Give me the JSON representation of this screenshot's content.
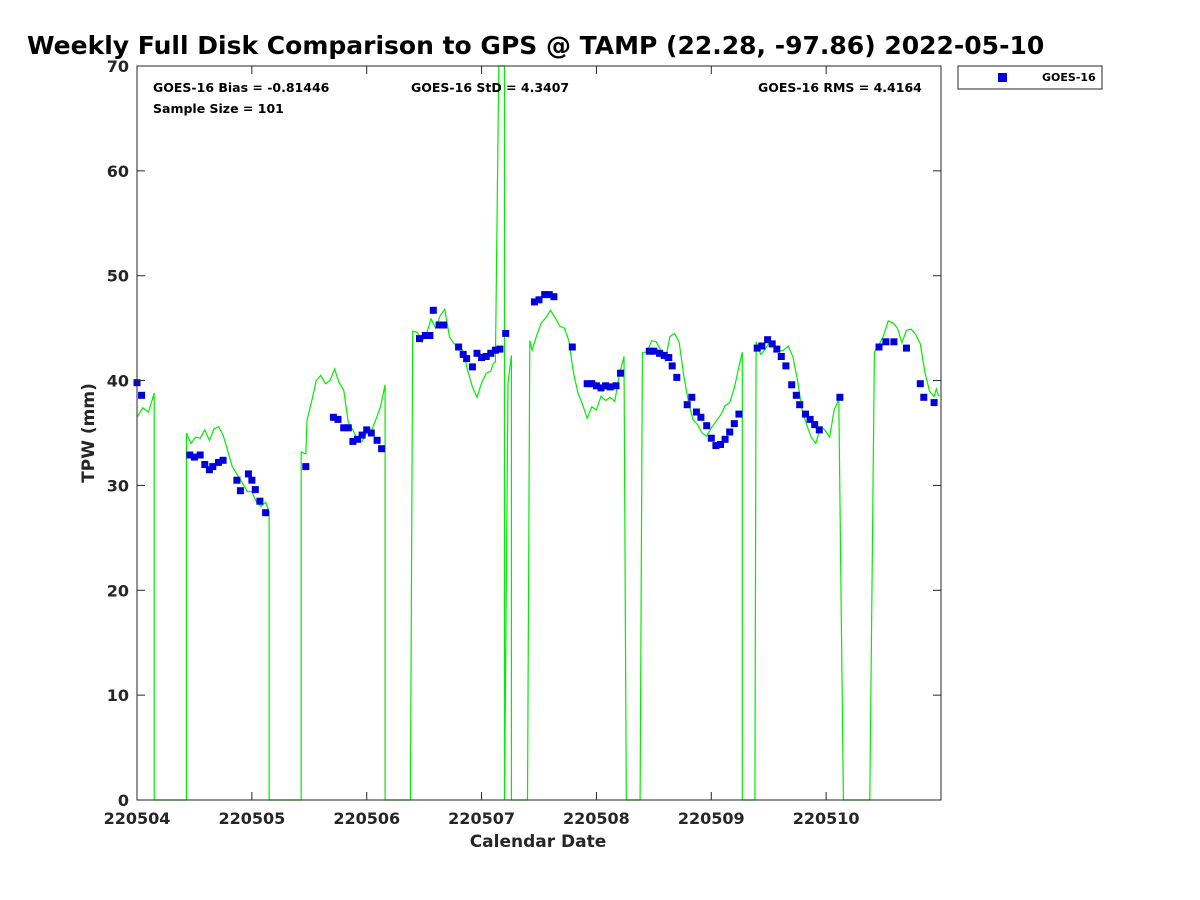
{
  "chart_data": {
    "type": "scatter",
    "title": "Weekly Full Disk Comparison to GPS @ TAMP (22.28, -97.86) 2022-05-10",
    "xlabel": "Calendar Date",
    "ylabel": "TPW (mm)",
    "xlim": [
      0,
      7
    ],
    "ylim": [
      0,
      70
    ],
    "x_ticks": [
      {
        "value": 0,
        "label": "220504"
      },
      {
        "value": 1,
        "label": "220505"
      },
      {
        "value": 2,
        "label": "220506"
      },
      {
        "value": 3,
        "label": "220507"
      },
      {
        "value": 4,
        "label": "220508"
      },
      {
        "value": 5,
        "label": "220509"
      },
      {
        "value": 6,
        "label": "220510"
      }
    ],
    "y_ticks": [
      0,
      10,
      20,
      30,
      40,
      50,
      60,
      70
    ],
    "grid": false,
    "legend_position": "top-right",
    "stats": {
      "bias": "GOES-16 Bias = -0.81446",
      "sample_size": "Sample Size = 101",
      "std": "GOES-16 StD = 4.3407",
      "rms": "GOES-16 RMS = 4.4164"
    },
    "series": [
      {
        "name": "GOES-16",
        "kind": "scatter",
        "color": "#0000dd",
        "points": [
          [
            0.0,
            39.8
          ],
          [
            0.04,
            38.6
          ],
          [
            0.46,
            32.9
          ],
          [
            0.5,
            32.7
          ],
          [
            0.55,
            32.9
          ],
          [
            0.59,
            32.0
          ],
          [
            0.63,
            31.5
          ],
          [
            0.66,
            31.8
          ],
          [
            0.71,
            32.2
          ],
          [
            0.75,
            32.4
          ],
          [
            0.87,
            30.5
          ],
          [
            0.9,
            29.5
          ],
          [
            0.97,
            31.1
          ],
          [
            1.0,
            30.5
          ],
          [
            1.03,
            29.6
          ],
          [
            1.07,
            28.5
          ],
          [
            1.12,
            27.4
          ],
          [
            1.47,
            31.8
          ],
          [
            1.71,
            36.5
          ],
          [
            1.75,
            36.3
          ],
          [
            1.8,
            35.5
          ],
          [
            1.84,
            35.5
          ],
          [
            1.88,
            34.2
          ],
          [
            1.92,
            34.4
          ],
          [
            1.96,
            34.8
          ],
          [
            2.0,
            35.3
          ],
          [
            2.04,
            35.0
          ],
          [
            2.09,
            34.3
          ],
          [
            2.13,
            33.5
          ],
          [
            2.46,
            44.0
          ],
          [
            2.51,
            44.3
          ],
          [
            2.55,
            44.3
          ],
          [
            2.58,
            46.7
          ],
          [
            2.63,
            45.3
          ],
          [
            2.67,
            45.3
          ],
          [
            2.8,
            43.2
          ],
          [
            2.84,
            42.5
          ],
          [
            2.87,
            42.1
          ],
          [
            2.92,
            41.3
          ],
          [
            2.96,
            42.6
          ],
          [
            3.0,
            42.2
          ],
          [
            3.04,
            42.3
          ],
          [
            3.08,
            42.6
          ],
          [
            3.12,
            42.9
          ],
          [
            3.16,
            43.0
          ],
          [
            3.21,
            44.5
          ],
          [
            3.46,
            47.5
          ],
          [
            3.5,
            47.7
          ],
          [
            3.55,
            48.2
          ],
          [
            3.59,
            48.2
          ],
          [
            3.63,
            48.0
          ],
          [
            3.79,
            43.2
          ],
          [
            3.92,
            39.7
          ],
          [
            3.96,
            39.7
          ],
          [
            4.0,
            39.5
          ],
          [
            4.04,
            39.3
          ],
          [
            4.08,
            39.5
          ],
          [
            4.12,
            39.4
          ],
          [
            4.17,
            39.5
          ],
          [
            4.21,
            40.7
          ],
          [
            4.46,
            42.8
          ],
          [
            4.5,
            42.8
          ],
          [
            4.55,
            42.6
          ],
          [
            4.59,
            42.4
          ],
          [
            4.63,
            42.2
          ],
          [
            4.66,
            41.4
          ],
          [
            4.7,
            40.3
          ],
          [
            4.79,
            37.7
          ],
          [
            4.83,
            38.4
          ],
          [
            4.87,
            37.0
          ],
          [
            4.91,
            36.5
          ],
          [
            4.96,
            35.7
          ],
          [
            5.0,
            34.5
          ],
          [
            5.04,
            33.8
          ],
          [
            5.08,
            33.9
          ],
          [
            5.12,
            34.4
          ],
          [
            5.16,
            35.1
          ],
          [
            5.2,
            35.9
          ],
          [
            5.24,
            36.8
          ],
          [
            5.4,
            43.1
          ],
          [
            5.44,
            43.3
          ],
          [
            5.49,
            43.9
          ],
          [
            5.53,
            43.5
          ],
          [
            5.57,
            43.0
          ],
          [
            5.61,
            42.3
          ],
          [
            5.65,
            41.4
          ],
          [
            5.7,
            39.6
          ],
          [
            5.74,
            38.6
          ],
          [
            5.77,
            37.7
          ],
          [
            5.82,
            36.8
          ],
          [
            5.86,
            36.3
          ],
          [
            5.9,
            35.8
          ],
          [
            5.94,
            35.3
          ],
          [
            6.12,
            38.4
          ],
          [
            6.46,
            43.2
          ],
          [
            6.52,
            43.7
          ],
          [
            6.59,
            43.7
          ],
          [
            6.7,
            43.1
          ],
          [
            6.82,
            39.7
          ],
          [
            6.85,
            38.4
          ],
          [
            6.94,
            37.9
          ]
        ]
      },
      {
        "name": "",
        "kind": "line",
        "color": "#00ee00",
        "points": [
          [
            0.0,
            36.5
          ],
          [
            0.05,
            37.4
          ],
          [
            0.1,
            37.0
          ],
          [
            0.15,
            38.8
          ],
          [
            0.15,
            0.0
          ],
          [
            0.43,
            0.0
          ],
          [
            0.43,
            35.0
          ],
          [
            0.47,
            34.0
          ],
          [
            0.51,
            34.6
          ],
          [
            0.55,
            34.5
          ],
          [
            0.59,
            35.3
          ],
          [
            0.63,
            34.3
          ],
          [
            0.67,
            35.4
          ],
          [
            0.71,
            35.6
          ],
          [
            0.75,
            34.8
          ],
          [
            0.79,
            33.3
          ],
          [
            0.83,
            31.8
          ],
          [
            0.88,
            30.9
          ],
          [
            0.92,
            30.2
          ],
          [
            0.96,
            29.4
          ],
          [
            1.0,
            29.4
          ],
          [
            1.04,
            28.4
          ],
          [
            1.08,
            28.0
          ],
          [
            1.12,
            28.4
          ],
          [
            1.15,
            27.5
          ],
          [
            1.15,
            0.0
          ],
          [
            1.43,
            0.0
          ],
          [
            1.43,
            33.2
          ],
          [
            1.47,
            33.0
          ],
          [
            1.48,
            36.2
          ],
          [
            1.52,
            38.0
          ],
          [
            1.56,
            40.0
          ],
          [
            1.6,
            40.5
          ],
          [
            1.64,
            39.7
          ],
          [
            1.68,
            40.0
          ],
          [
            1.72,
            41.1
          ],
          [
            1.76,
            39.8
          ],
          [
            1.8,
            39.1
          ],
          [
            1.84,
            36.0
          ],
          [
            1.88,
            35.3
          ],
          [
            1.92,
            34.3
          ],
          [
            1.96,
            34.2
          ],
          [
            2.0,
            35.0
          ],
          [
            2.04,
            35.2
          ],
          [
            2.08,
            36.3
          ],
          [
            2.12,
            37.5
          ],
          [
            2.16,
            39.6
          ],
          [
            2.16,
            0.0
          ],
          [
            2.38,
            0.0
          ],
          [
            2.4,
            44.7
          ],
          [
            2.44,
            44.6
          ],
          [
            2.48,
            43.7
          ],
          [
            2.52,
            44.4
          ],
          [
            2.56,
            45.9
          ],
          [
            2.6,
            45.0
          ],
          [
            2.64,
            46.2
          ],
          [
            2.68,
            46.8
          ],
          [
            2.72,
            44.2
          ],
          [
            2.76,
            43.5
          ],
          [
            2.8,
            43.4
          ],
          [
            2.84,
            42.8
          ],
          [
            2.88,
            40.9
          ],
          [
            2.92,
            39.4
          ],
          [
            2.96,
            38.4
          ],
          [
            3.0,
            39.8
          ],
          [
            3.04,
            40.7
          ],
          [
            3.08,
            40.9
          ],
          [
            3.1,
            41.6
          ],
          [
            3.12,
            41.8
          ],
          [
            3.15,
            70.0
          ],
          [
            3.2,
            70.0
          ],
          [
            3.2,
            0.0
          ],
          [
            3.23,
            39.8
          ],
          [
            3.26,
            42.4
          ],
          [
            3.26,
            0.0
          ],
          [
            3.4,
            0.0
          ],
          [
            3.42,
            43.8
          ],
          [
            3.44,
            42.9
          ],
          [
            3.48,
            44.3
          ],
          [
            3.52,
            45.5
          ],
          [
            3.56,
            46.0
          ],
          [
            3.6,
            46.7
          ],
          [
            3.64,
            46.0
          ],
          [
            3.68,
            45.2
          ],
          [
            3.72,
            45.0
          ],
          [
            3.76,
            43.8
          ],
          [
            3.8,
            40.7
          ],
          [
            3.84,
            38.8
          ],
          [
            3.88,
            37.7
          ],
          [
            3.92,
            36.4
          ],
          [
            3.96,
            37.5
          ],
          [
            4.0,
            37.2
          ],
          [
            4.04,
            38.5
          ],
          [
            4.08,
            38.1
          ],
          [
            4.12,
            38.4
          ],
          [
            4.16,
            38.0
          ],
          [
            4.2,
            40.6
          ],
          [
            4.24,
            42.3
          ],
          [
            4.26,
            0.0
          ],
          [
            4.38,
            0.0
          ],
          [
            4.4,
            42.7
          ],
          [
            4.44,
            42.7
          ],
          [
            4.48,
            43.8
          ],
          [
            4.52,
            43.7
          ],
          [
            4.56,
            42.9
          ],
          [
            4.6,
            41.9
          ],
          [
            4.64,
            44.2
          ],
          [
            4.68,
            44.5
          ],
          [
            4.72,
            43.7
          ],
          [
            4.76,
            40.5
          ],
          [
            4.8,
            38.0
          ],
          [
            4.84,
            36.3
          ],
          [
            4.88,
            35.8
          ],
          [
            4.92,
            35.0
          ],
          [
            4.96,
            34.7
          ],
          [
            5.0,
            35.5
          ],
          [
            5.04,
            36.1
          ],
          [
            5.08,
            36.7
          ],
          [
            5.12,
            37.6
          ],
          [
            5.16,
            37.9
          ],
          [
            5.2,
            39.3
          ],
          [
            5.24,
            41.3
          ],
          [
            5.27,
            42.7
          ],
          [
            5.27,
            0.0
          ],
          [
            5.38,
            0.0
          ],
          [
            5.39,
            43.7
          ],
          [
            5.43,
            42.5
          ],
          [
            5.47,
            43.0
          ],
          [
            5.51,
            43.7
          ],
          [
            5.55,
            43.4
          ],
          [
            5.59,
            42.8
          ],
          [
            5.63,
            42.9
          ],
          [
            5.67,
            43.3
          ],
          [
            5.71,
            42.3
          ],
          [
            5.75,
            40.1
          ],
          [
            5.79,
            37.2
          ],
          [
            5.83,
            35.8
          ],
          [
            5.87,
            34.6
          ],
          [
            5.91,
            34.0
          ],
          [
            5.95,
            35.6
          ],
          [
            5.99,
            35.3
          ],
          [
            6.03,
            34.6
          ],
          [
            6.07,
            37.2
          ],
          [
            6.11,
            38.2
          ],
          [
            6.15,
            0.0
          ],
          [
            6.38,
            0.0
          ],
          [
            6.42,
            42.7
          ],
          [
            6.46,
            43.4
          ],
          [
            6.5,
            44.3
          ],
          [
            6.54,
            45.7
          ],
          [
            6.58,
            45.5
          ],
          [
            6.62,
            45.0
          ],
          [
            6.66,
            43.6
          ],
          [
            6.7,
            44.8
          ],
          [
            6.74,
            44.9
          ],
          [
            6.78,
            44.4
          ],
          [
            6.82,
            43.5
          ],
          [
            6.86,
            40.8
          ],
          [
            6.9,
            39.0
          ],
          [
            6.94,
            38.5
          ],
          [
            6.96,
            39.2
          ],
          [
            6.98,
            38.5
          ]
        ]
      }
    ]
  }
}
